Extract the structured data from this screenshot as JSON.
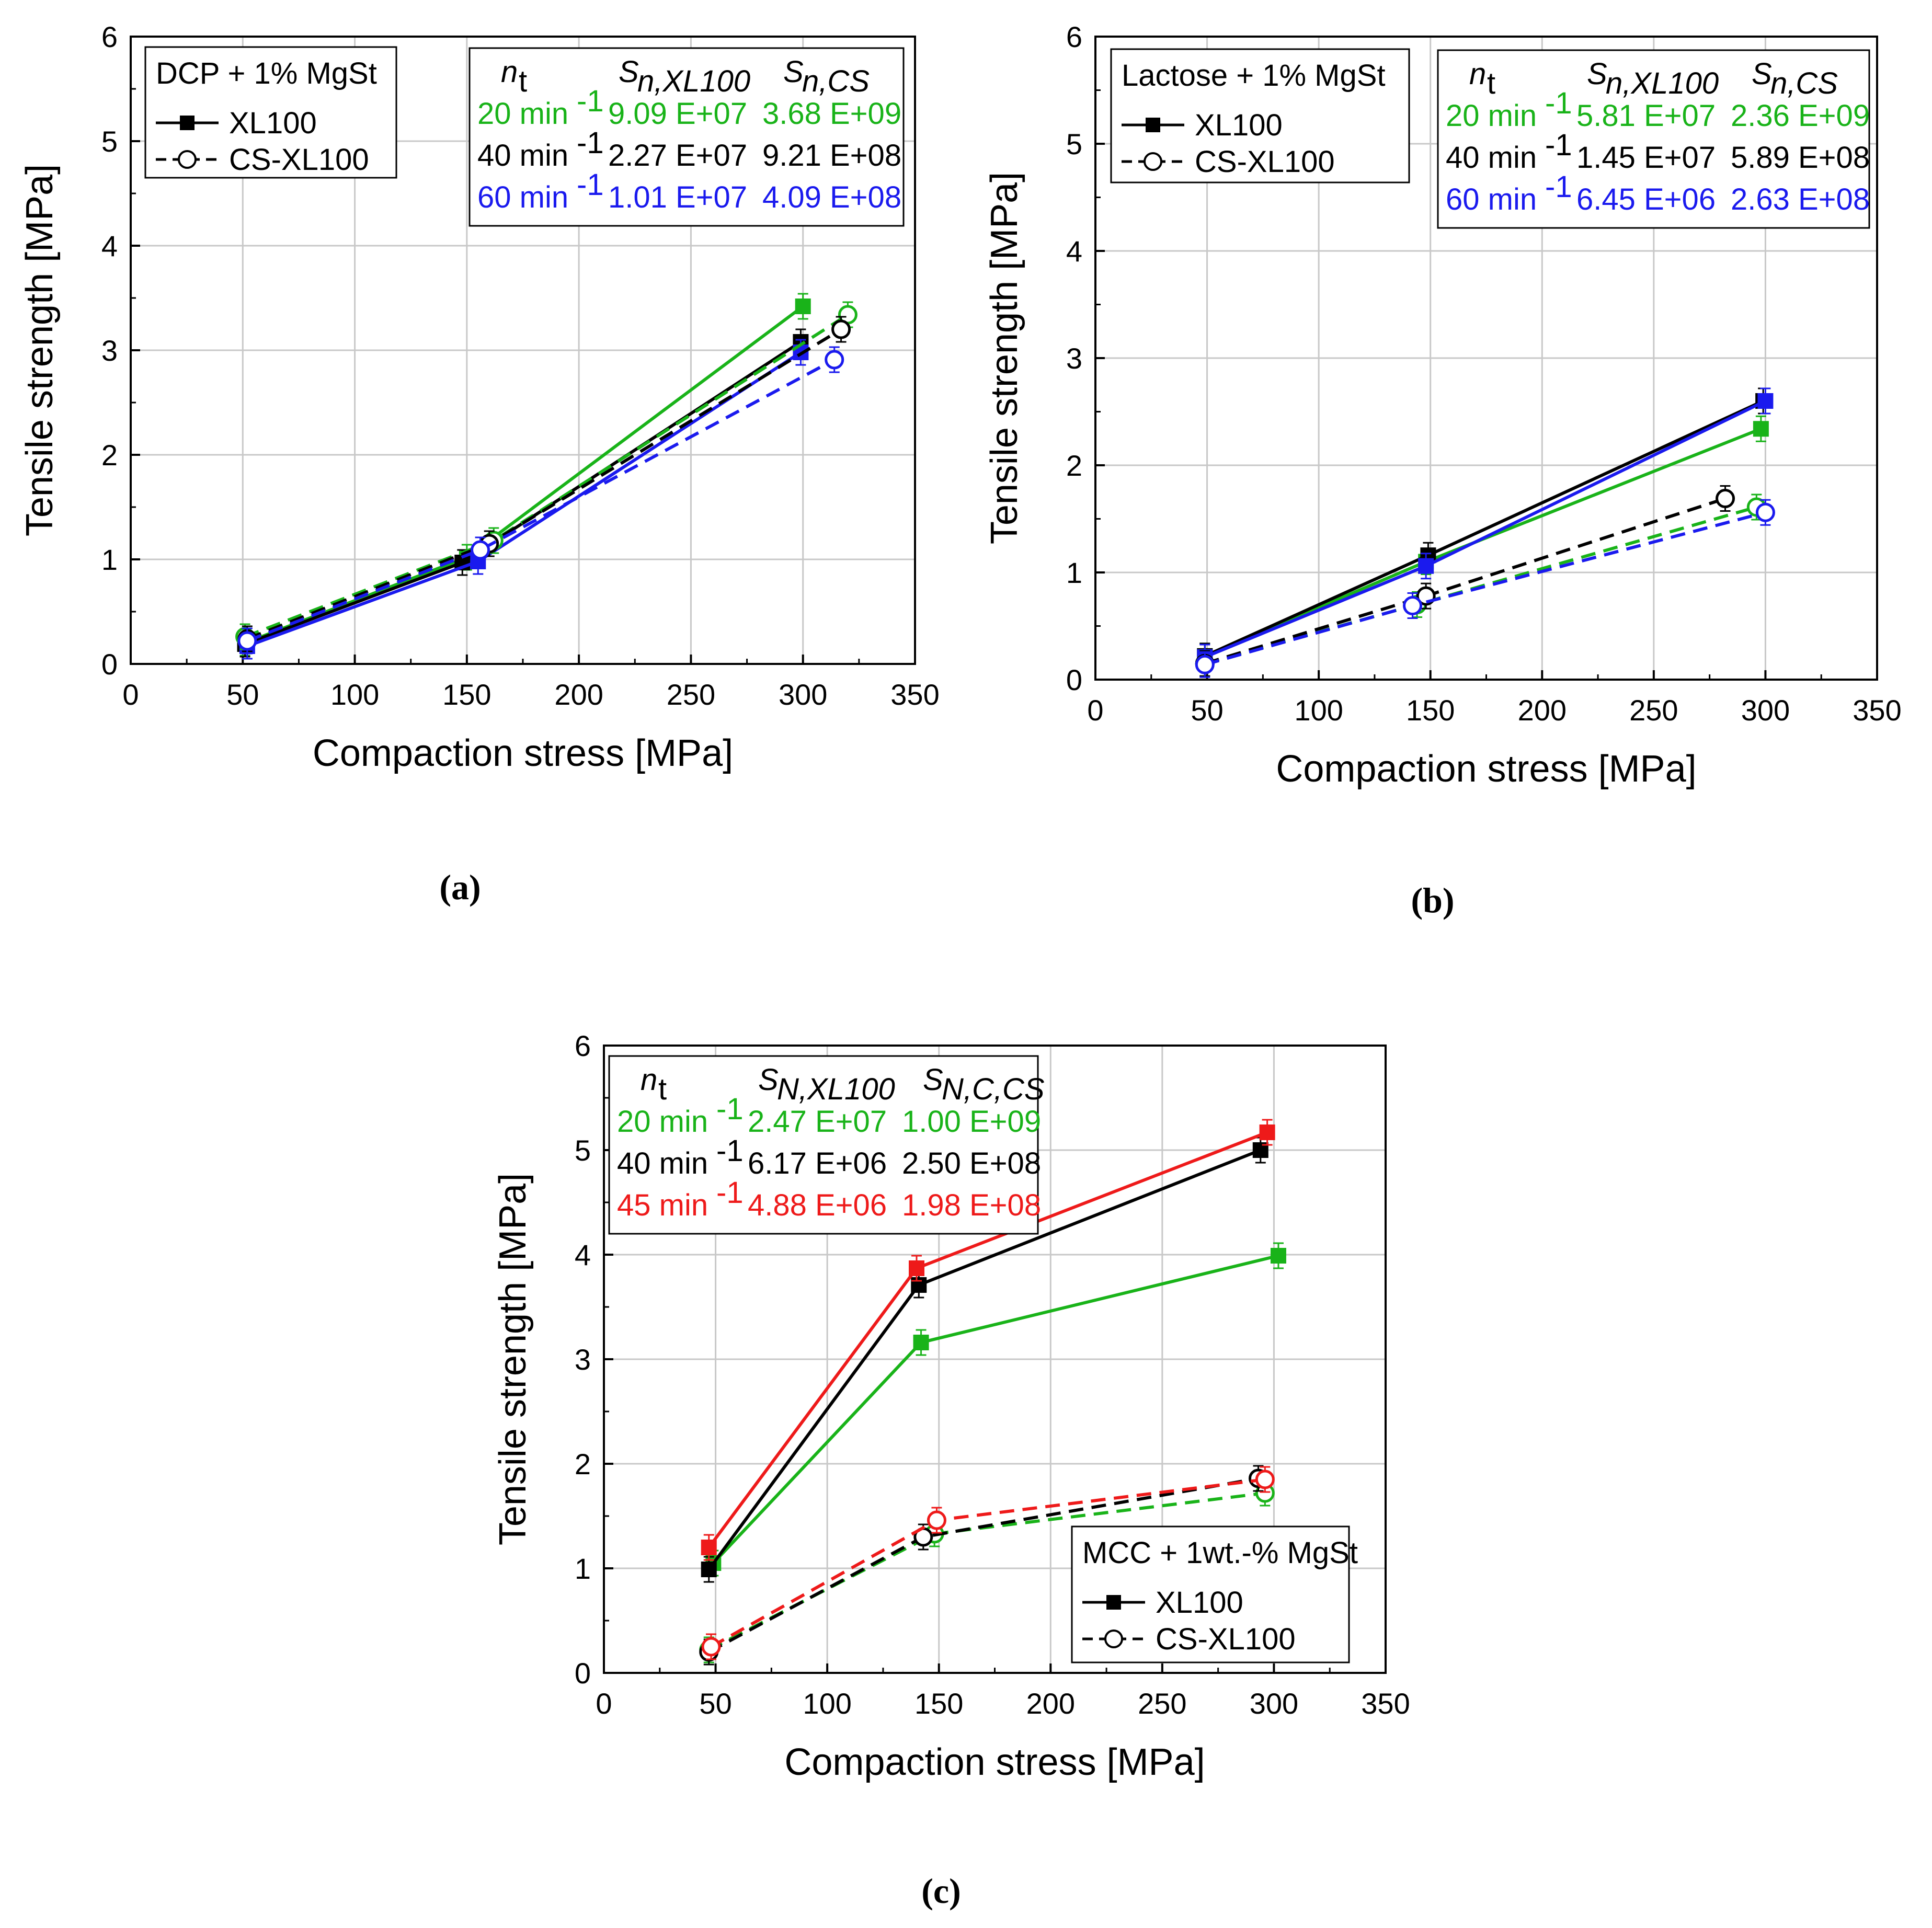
{
  "chart_data": [
    {
      "type": "line",
      "panel_label": "(a)",
      "xlabel": "Compaction stress [MPa]",
      "ylabel": "Tensile strength [MPa]",
      "xlim": [
        0,
        350
      ],
      "ylim": [
        0,
        6
      ],
      "xticks": [
        "0",
        "50",
        "100",
        "150",
        "200",
        "250",
        "300",
        "350"
      ],
      "yticks": [
        "0",
        "1",
        "2",
        "3",
        "4",
        "5",
        "6"
      ],
      "grid": true,
      "legend": {
        "title": "DCP + 1% MgSt",
        "solid_label": "XL100",
        "dashed_label": "CS-XL100",
        "placement": "top-left"
      },
      "table": {
        "placement": "top-right",
        "headers": [
          "n",
          "t",
          "S",
          "n,XL100",
          "S",
          "n,CS"
        ],
        "rows": [
          {
            "speed": "20 min",
            "exp": "-1",
            "s_xl100": "9.09 E+07",
            "s_cs": "3.68 E+09",
            "color": "#19b319"
          },
          {
            "speed": "40 min",
            "exp": "-1",
            "s_xl100": "2.27 E+07",
            "s_cs": "9.21 E+08",
            "color": "#000000"
          },
          {
            "speed": "60 min",
            "exp": "-1",
            "s_xl100": "1.01 E+07",
            "s_cs": "4.09 E+08",
            "color": "#1a1aee"
          }
        ]
      },
      "series": [
        {
          "name": "XL100 20 min-1",
          "color": "#19b319",
          "style": "solid",
          "marker": "square",
          "x": [
            51,
            150,
            300
          ],
          "y": [
            0.2,
            1.02,
            3.42
          ]
        },
        {
          "name": "XL100 40 min-1",
          "color": "#000000",
          "style": "solid",
          "marker": "square",
          "x": [
            51,
            148,
            299
          ],
          "y": [
            0.19,
            0.97,
            3.08
          ]
        },
        {
          "name": "XL100 60 min-1",
          "color": "#1a1aee",
          "style": "solid",
          "marker": "square",
          "x": [
            52,
            155,
            299
          ],
          "y": [
            0.17,
            0.98,
            2.98
          ]
        },
        {
          "name": "CS-XL100 20 min-1",
          "color": "#19b319",
          "style": "dashed",
          "marker": "circle",
          "x": [
            51,
            162,
            320
          ],
          "y": [
            0.26,
            1.18,
            3.34
          ]
        },
        {
          "name": "CS-XL100 40 min-1",
          "color": "#000000",
          "style": "dashed",
          "marker": "circle",
          "x": [
            52,
            160,
            317
          ],
          "y": [
            0.24,
            1.15,
            3.2
          ]
        },
        {
          "name": "CS-XL100 60 min-1",
          "color": "#1a1aee",
          "style": "dashed",
          "marker": "circle",
          "x": [
            52,
            156,
            314
          ],
          "y": [
            0.22,
            1.09,
            2.91
          ]
        }
      ]
    },
    {
      "type": "line",
      "panel_label": "(b)",
      "xlabel": "Compaction stress [MPa]",
      "ylabel": "Tensile strength [MPa]",
      "xlim": [
        0,
        350
      ],
      "ylim": [
        0,
        6
      ],
      "xticks": [
        "0",
        "50",
        "100",
        "150",
        "200",
        "250",
        "300",
        "350"
      ],
      "yticks": [
        "0",
        "1",
        "2",
        "3",
        "4",
        "5",
        "6"
      ],
      "grid": true,
      "legend": {
        "title": "Lactose + 1% MgSt",
        "solid_label": "XL100",
        "dashed_label": "CS-XL100",
        "placement": "top-left"
      },
      "table": {
        "placement": "top-right",
        "headers": [
          "n",
          "t",
          "S",
          "n,XL100",
          "S",
          "n,CS"
        ],
        "rows": [
          {
            "speed": "20 min",
            "exp": "-1",
            "s_xl100": "5.81 E+07",
            "s_cs": "2.36 E+09",
            "color": "#19b319"
          },
          {
            "speed": "40 min",
            "exp": "-1",
            "s_xl100": "1.45 E+07",
            "s_cs": "5.89 E+08",
            "color": "#000000"
          },
          {
            "speed": "60 min",
            "exp": "-1",
            "s_xl100": "6.45 E+06",
            "s_cs": "2.63 E+08",
            "color": "#1a1aee"
          }
        ]
      },
      "series": [
        {
          "name": "XL100 20 min-1",
          "color": "#19b319",
          "style": "solid",
          "marker": "square",
          "x": [
            49,
            148,
            298
          ],
          "y": [
            0.22,
            1.1,
            2.34
          ]
        },
        {
          "name": "XL100 40 min-1",
          "color": "#000000",
          "style": "solid",
          "marker": "square",
          "x": [
            49,
            149,
            299
          ],
          "y": [
            0.22,
            1.16,
            2.6
          ]
        },
        {
          "name": "XL100 60 min-1",
          "color": "#1a1aee",
          "style": "solid",
          "marker": "square",
          "x": [
            49,
            148,
            300
          ],
          "y": [
            0.21,
            1.06,
            2.6
          ]
        },
        {
          "name": "CS-XL100 20 min-1",
          "color": "#19b319",
          "style": "dashed",
          "marker": "circle",
          "x": [
            49,
            144,
            296
          ],
          "y": [
            0.15,
            0.7,
            1.61
          ]
        },
        {
          "name": "CS-XL100 40 min-1",
          "color": "#000000",
          "style": "dashed",
          "marker": "circle",
          "x": [
            49,
            148,
            282
          ],
          "y": [
            0.15,
            0.78,
            1.69
          ]
        },
        {
          "name": "CS-XL100 60 min-1",
          "color": "#1a1aee",
          "style": "dashed",
          "marker": "circle",
          "x": [
            49,
            142,
            300
          ],
          "y": [
            0.14,
            0.69,
            1.56
          ]
        }
      ]
    },
    {
      "type": "line",
      "panel_label": "(c)",
      "xlabel": "Compaction stress [MPa]",
      "ylabel": "Tensile strength [MPa]",
      "xlim": [
        0,
        350
      ],
      "ylim": [
        0,
        6
      ],
      "xticks": [
        "0",
        "50",
        "100",
        "150",
        "200",
        "250",
        "300",
        "350"
      ],
      "yticks": [
        "0",
        "1",
        "2",
        "3",
        "4",
        "5",
        "6"
      ],
      "grid": true,
      "legend": {
        "title": "MCC + 1wt.-% MgSt",
        "solid_label": "XL100",
        "dashed_label": "CS-XL100",
        "placement": "bottom-right"
      },
      "table": {
        "placement": "top-left",
        "headers": [
          "n",
          "t",
          "S",
          "N,XL100",
          "S",
          "N,C,CS"
        ],
        "rows": [
          {
            "speed": "20 min",
            "exp": "-1",
            "s_xl100": "2.47 E+07",
            "s_cs": "1.00 E+09",
            "color": "#19b319"
          },
          {
            "speed": "40 min",
            "exp": "-1",
            "s_xl100": "6.17 E+06",
            "s_cs": "2.50 E+08",
            "color": "#000000"
          },
          {
            "speed": "45 min",
            "exp": "-1",
            "s_xl100": "4.88 E+06",
            "s_cs": "1.98 E+08",
            "color": "#ee1a1a"
          }
        ]
      },
      "series": [
        {
          "name": "XL100 20 min-1",
          "color": "#19b319",
          "style": "solid",
          "marker": "square",
          "x": [
            49,
            142,
            302
          ],
          "y": [
            1.05,
            3.16,
            3.99
          ]
        },
        {
          "name": "XL100 40 min-1",
          "color": "#000000",
          "style": "solid",
          "marker": "square",
          "x": [
            47,
            141,
            294
          ],
          "y": [
            0.99,
            3.71,
            5.0
          ]
        },
        {
          "name": "XL100 45 min-1",
          "color": "#ee1a1a",
          "style": "solid",
          "marker": "square",
          "x": [
            47,
            140,
            297
          ],
          "y": [
            1.2,
            3.87,
            5.17
          ]
        },
        {
          "name": "CS-XL100 20 min-1",
          "color": "#19b319",
          "style": "dashed",
          "marker": "circle",
          "x": [
            47,
            148,
            296
          ],
          "y": [
            0.22,
            1.33,
            1.72
          ]
        },
        {
          "name": "CS-XL100 40 min-1",
          "color": "#000000",
          "style": "dashed",
          "marker": "circle",
          "x": [
            47,
            143,
            293
          ],
          "y": [
            0.2,
            1.3,
            1.86
          ]
        },
        {
          "name": "CS-XL100 45 min-1",
          "color": "#ee1a1a",
          "style": "dashed",
          "marker": "circle",
          "x": [
            48,
            149,
            296
          ],
          "y": [
            0.25,
            1.46,
            1.85
          ]
        }
      ]
    }
  ]
}
